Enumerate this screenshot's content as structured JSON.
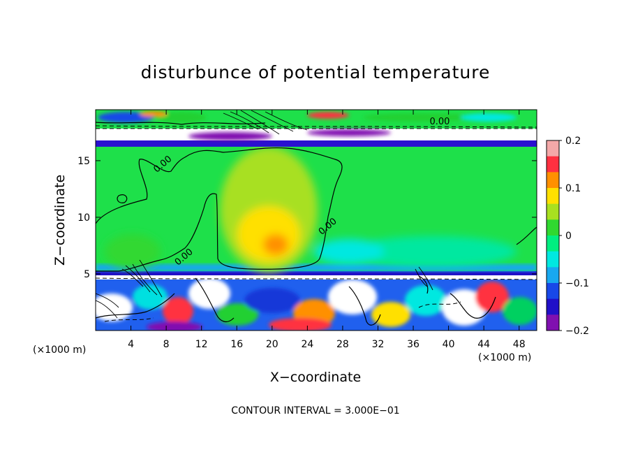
{
  "chart_data": {
    "type": "heatmap",
    "title": "disturbunce of potential temperature",
    "xlabel": "X−coordinate",
    "ylabel": "Z−coordinate",
    "x_unit": "(×1000 m)",
    "z_unit": "(×1000 m)",
    "xlim": [
      0,
      50
    ],
    "ylim": [
      0,
      19.5
    ],
    "x_ticks": [
      4,
      8,
      12,
      16,
      20,
      24,
      28,
      32,
      36,
      40,
      44,
      48
    ],
    "y_ticks": [
      5,
      10,
      15
    ],
    "colorbar": {
      "range": [
        -0.2,
        0.2
      ],
      "tick_values": [
        0.2,
        0.1,
        0,
        -0.1,
        -0.2
      ],
      "tick_labels": [
        "0.2",
        "0.1",
        "0",
        "−0.1",
        "−0.2"
      ],
      "colors": [
        "#f4a8a8",
        "#ff3040",
        "#ff9000",
        "#ffe000",
        "#a8e020",
        "#30d830",
        "#00ee80",
        "#00e8e0",
        "#18a8f0",
        "#1848e8",
        "#2010c8",
        "#8010b0"
      ]
    },
    "contour_interval_text": "CONTOUR INTERVAL = 3.000E−01",
    "contour_labels": [
      {
        "text": "0.00",
        "x": 7.8,
        "z": 14.5
      },
      {
        "text": "0.00",
        "x": 10.2,
        "z": 6.3
      },
      {
        "text": "0.00",
        "x": 26.5,
        "z": 9.0
      },
      {
        "text": "0.00",
        "x": 39.0,
        "z": 18.2
      }
    ],
    "layers": [
      {
        "z": [
          0,
          4.8
        ],
        "value": "mixed",
        "desc_color": "#1848e8"
      },
      {
        "z": [
          4.8,
          5.6
        ],
        "value": -0.2,
        "desc_color": "#ffffff"
      },
      {
        "z": [
          5.6,
          16.8
        ],
        "value": 0.0,
        "desc_color": "#20e030"
      },
      {
        "z": [
          16.8,
          17.5
        ],
        "value": -0.2,
        "desc_color": "#2010c8"
      },
      {
        "z": [
          17.5,
          19.5
        ],
        "value": "mixed",
        "desc_color": "#ffffff"
      }
    ]
  }
}
